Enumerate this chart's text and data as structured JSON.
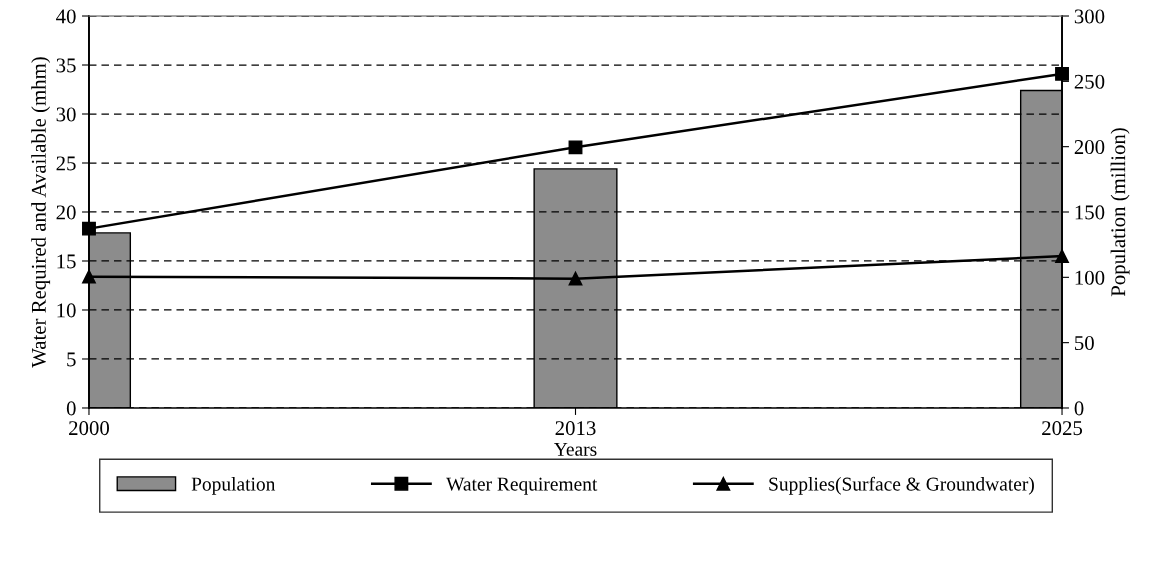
{
  "chart_data": {
    "type": "bar",
    "xlabel": "Years",
    "ylabel": "Water Required and Available (mhm)",
    "y2label": "Population (million)",
    "categories": [
      "2000",
      "2013",
      "2025"
    ],
    "series": [
      {
        "name": "Population",
        "axis": "y2",
        "color": "#8c8c8c",
        "values": [
          134,
          183,
          243
        ]
      },
      {
        "name": "Water Requirement",
        "type": "line",
        "color": "#000000",
        "marker": "square",
        "values": [
          18.3,
          26.6,
          34.1
        ]
      },
      {
        "name": "Supplies(Surface & Groundwater)",
        "type": "line",
        "color": "#000000",
        "marker": "triangle",
        "values": [
          13.4,
          13.2,
          15.5
        ]
      }
    ],
    "ylim": [
      0,
      40
    ],
    "yticks": [
      0,
      5,
      10,
      15,
      20,
      25,
      30,
      35,
      40
    ],
    "y2lim": [
      0,
      300
    ],
    "y2ticks": [
      0,
      50,
      100,
      150,
      200,
      250,
      300
    ],
    "grid": "y",
    "legend": "bottom",
    "line_style": "solid"
  }
}
